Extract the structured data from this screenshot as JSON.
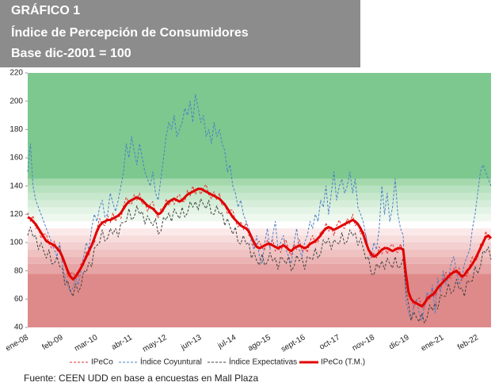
{
  "chart_data": {
    "type": "line",
    "title": "GRÁFICO 1",
    "subtitle": "Índice de Percepción de Consumidores",
    "base_note": "Base dic-2001 = 100",
    "source": "Fuente: CEEN UDD en base a encuestas en Mall Plaza",
    "ylim": [
      40,
      220
    ],
    "yticks": [
      40,
      60,
      80,
      100,
      120,
      140,
      160,
      180,
      200,
      220
    ],
    "bands": [
      {
        "from": 145,
        "to": 220,
        "color": "#7dc88f"
      },
      {
        "from": 140,
        "to": 145,
        "color": "#a5d9ad"
      },
      {
        "from": 135,
        "to": 140,
        "color": "#b8e1bf"
      },
      {
        "from": 130,
        "to": 135,
        "color": "#c8e8cd"
      },
      {
        "from": 125,
        "to": 130,
        "color": "#d6eed9"
      },
      {
        "from": 120,
        "to": 125,
        "color": "#e3f3e5"
      },
      {
        "from": 115,
        "to": 120,
        "color": "#eef8ef"
      },
      {
        "from": 110,
        "to": 115,
        "color": "#ffffff"
      },
      {
        "from": 105,
        "to": 110,
        "color": "#fbe9e9"
      },
      {
        "from": 100,
        "to": 105,
        "color": "#f7dcdc"
      },
      {
        "from": 95,
        "to": 100,
        "color": "#f3cfcf"
      },
      {
        "from": 90,
        "to": 95,
        "color": "#efc1c1"
      },
      {
        "from": 85,
        "to": 90,
        "color": "#ebb3b3"
      },
      {
        "from": 78,
        "to": 85,
        "color": "#e6a4a4"
      },
      {
        "from": 40,
        "to": 78,
        "color": "#df8a8a"
      }
    ],
    "categories": [
      "ene-08",
      null,
      null,
      null,
      null,
      null,
      null,
      null,
      null,
      null,
      null,
      null,
      null,
      "feb-09",
      null,
      null,
      null,
      null,
      null,
      null,
      null,
      null,
      null,
      null,
      null,
      null,
      "mar-10",
      null,
      null,
      null,
      null,
      null,
      null,
      null,
      null,
      null,
      null,
      null,
      null,
      "abr-11",
      null,
      null,
      null,
      null,
      null,
      null,
      null,
      null,
      null,
      null,
      null,
      null,
      "may-12",
      null,
      null,
      null,
      null,
      null,
      null,
      null,
      null,
      null,
      null,
      null,
      null,
      "jun-13",
      null,
      null,
      null,
      null,
      null,
      null,
      null,
      null,
      null,
      null,
      null,
      null,
      "jul-14",
      null,
      null,
      null,
      null,
      null,
      null,
      null,
      null,
      null,
      null,
      null,
      null,
      "ago-15",
      null,
      null,
      null,
      null,
      null,
      null,
      null,
      null,
      null,
      null,
      null,
      null,
      "sept-16",
      null,
      null,
      null,
      null,
      null,
      null,
      null,
      null,
      null,
      null,
      null,
      null,
      "oct-17",
      null,
      null,
      null,
      null,
      null,
      null,
      null,
      null,
      null,
      null,
      null,
      null,
      "nov-18",
      null,
      null,
      null,
      null,
      null,
      null,
      null,
      null,
      null,
      null,
      null,
      null,
      "dic-19",
      null,
      null,
      null,
      null,
      null,
      null,
      null,
      null,
      null,
      null,
      null,
      null,
      "ene-21",
      null,
      null,
      null,
      null,
      null,
      null,
      null,
      null,
      null,
      null,
      null,
      null,
      "feb-22",
      null,
      null,
      null,
      null,
      null
    ],
    "series": [
      {
        "name": "IPeCo",
        "color": "#e03030",
        "dashed": true,
        "values": [
          121,
          115,
          119,
          110,
          111,
          103,
          106,
          106,
          99,
          96,
          101,
          94,
          98,
          87,
          86,
          76,
          78,
          79,
          75,
          76,
          85,
          84,
          94,
          91,
          99,
          99,
          110,
          117,
          113,
          112,
          119,
          114,
          121,
          115,
          120,
          117,
          126,
          132,
          128,
          127,
          134,
          130,
          135,
          127,
          129,
          122,
          127,
          129,
          121,
          117,
          124,
          122,
          131,
          126,
          131,
          127,
          132,
          134,
          129,
          129,
          137,
          133,
          140,
          134,
          139,
          134,
          139,
          141,
          134,
          131,
          136,
          130,
          135,
          126,
          128,
          120,
          123,
          123,
          115,
          111,
          115,
          109,
          114,
          105,
          105,
          96,
          99,
          101,
          96,
          95,
          102,
          97,
          102,
          94,
          97,
          93,
          100,
          102,
          94,
          91,
          99,
          95,
          102,
          94,
          97,
          93,
          101,
          105,
          100,
          100,
          108,
          106,
          114,
          108,
          111,
          105,
          112,
          116,
          111,
          110,
          117,
          113,
          120,
          112,
          114,
          106,
          108,
          105,
          94,
          89,
          93,
          89,
          97,
          92,
          97,
          92,
          97,
          99,
          94,
          93,
          99,
          93,
          82,
          62,
          61,
          54,
          59,
          61,
          54,
          54,
          63,
          60,
          67,
          62,
          69,
          66,
          74,
          79,
          75,
          75,
          82,
          78,
          82,
          73,
          78,
          76,
          84,
          90,
          87,
          89,
          99,
          98,
          108,
          102,
          104
        ]
      },
      {
        "name": "Índice Coyuntural",
        "color": "#4a7fc8",
        "dashed": true,
        "values": [
          150,
          170,
          140,
          130,
          125,
          120,
          115,
          110,
          105,
          100,
          95,
          90,
          100,
          85,
          75,
          70,
          65,
          68,
          75,
          70,
          80,
          90,
          100,
          95,
          110,
          120,
          115,
          125,
          130,
          118,
          120,
          135,
          128,
          122,
          130,
          140,
          150,
          170,
          160,
          175,
          165,
          155,
          170,
          160,
          150,
          145,
          140,
          150,
          135,
          130,
          145,
          160,
          175,
          185,
          180,
          190,
          175,
          180,
          185,
          195,
          190,
          200,
          185,
          205,
          195,
          185,
          190,
          175,
          180,
          170,
          185,
          175,
          180,
          170,
          165,
          150,
          155,
          140,
          135,
          125,
          130,
          120,
          115,
          110,
          100,
          95,
          105,
          90,
          85,
          100,
          110,
          95,
          105,
          115,
          95,
          100,
          105,
          95,
          90,
          85,
          100,
          110,
          95,
          90,
          100,
          105,
          115,
          110,
          120,
          115,
          130,
          125,
          140,
          120,
          135,
          150,
          130,
          140,
          145,
          135,
          140,
          150,
          135,
          145,
          125,
          120,
          115,
          105,
          95,
          90,
          100,
          95,
          110,
          140,
          120,
          135,
          115,
          125,
          145,
          120,
          110,
          105,
          60,
          50,
          45,
          55,
          60,
          50,
          45,
          55,
          65,
          60,
          70,
          50,
          75,
          65,
          80,
          70,
          75,
          85,
          90,
          80,
          70,
          75,
          85,
          90,
          95,
          110,
          120,
          135,
          150,
          155,
          150,
          145,
          140
        ]
      },
      {
        "name": "Índice Expectativas",
        "color": "#404040",
        "dashed": true,
        "values": [
          105,
          111,
          104,
          105,
          95,
          100,
          94,
          89,
          95,
          85,
          85,
          90,
          83,
          82,
          70,
          73,
          66,
          62,
          71,
          65,
          69,
          80,
          79,
          86,
          83,
          96,
          98,
          100,
          109,
          101,
          103,
          110,
          106,
          110,
          104,
          114,
          114,
          115,
          124,
          116,
          118,
          126,
          120,
          122,
          113,
          119,
          115,
          112,
          117,
          106,
          108,
          118,
          116,
          121,
          115,
          124,
          120,
          117,
          125,
          118,
          121,
          129,
          125,
          129,
          123,
          131,
          127,
          124,
          130,
          120,
          120,
          126,
          120,
          121,
          112,
          117,
          111,
          106,
          111,
          100,
          99,
          105,
          99,
          100,
          89,
          93,
          87,
          84,
          92,
          84,
          86,
          93,
          87,
          89,
          81,
          90,
          88,
          85,
          90,
          80,
          83,
          91,
          87,
          89,
          81,
          90,
          89,
          88,
          96,
          89,
          92,
          102,
          99,
          103,
          95,
          102,
          100,
          99,
          107,
          99,
          101,
          109,
          105,
          107,
          98,
          103,
          96,
          88,
          90,
          78,
          77,
          85,
          82,
          87,
          81,
          89,
          85,
          82,
          90,
          82,
          83,
          89,
          67,
          57,
          45,
          51,
          47,
          44,
          50,
          43,
          47,
          56,
          52,
          57,
          53,
          63,
          62,
          62,
          71,
          64,
          66,
          74,
          67,
          68,
          62,
          73,
          72,
          73,
          83,
          78,
          83,
          94,
          93,
          97,
          88
        ]
      },
      {
        "name": "IPeCo (T.M.)",
        "color": "#e00000",
        "dashed": false,
        "values": [
          118,
          117,
          115,
          113,
          110,
          107,
          104,
          101,
          100,
          99,
          98,
          96,
          94,
          90,
          85,
          80,
          76,
          74,
          76,
          79,
          82,
          86,
          90,
          94,
          98,
          103,
          108,
          112,
          114,
          115,
          116,
          116,
          117,
          118,
          119,
          121,
          124,
          127,
          129,
          130,
          131,
          132,
          131,
          130,
          128,
          126,
          125,
          124,
          122,
          120,
          121,
          124,
          127,
          129,
          130,
          131,
          130,
          129,
          130,
          132,
          134,
          135,
          136,
          137,
          138,
          138,
          137,
          136,
          135,
          134,
          133,
          132,
          131,
          129,
          127,
          124,
          121,
          118,
          116,
          114,
          112,
          111,
          110,
          108,
          104,
          100,
          97,
          96,
          97,
          98,
          99,
          99,
          98,
          97,
          96,
          97,
          98,
          97,
          95,
          94,
          96,
          97,
          98,
          97,
          96,
          97,
          99,
          100,
          101,
          103,
          105,
          108,
          110,
          111,
          110,
          109,
          110,
          111,
          112,
          113,
          114,
          115,
          116,
          115,
          113,
          110,
          106,
          100,
          95,
          92,
          90,
          91,
          93,
          95,
          96,
          96,
          95,
          94,
          95,
          96,
          96,
          95,
          78,
          65,
          60,
          58,
          57,
          56,
          55,
          57,
          60,
          62,
          63,
          65,
          68,
          70,
          72,
          74,
          76,
          78,
          79,
          80,
          78,
          76,
          77,
          80,
          82,
          85,
          88,
          92,
          96,
          100,
          104,
          105,
          103
        ]
      }
    ]
  }
}
